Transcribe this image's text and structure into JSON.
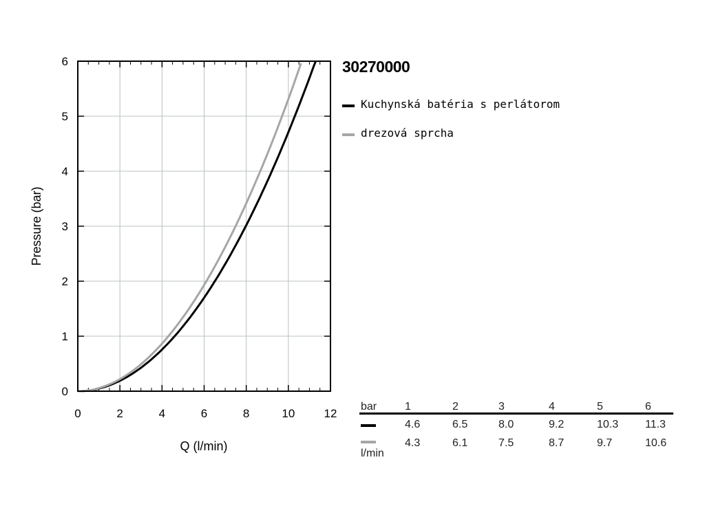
{
  "colors": {
    "series_0": "#000000",
    "series_1": "#a6a6a6",
    "grid": "#b9c0c2"
  },
  "product_code": "30270000",
  "chart_data": {
    "type": "line",
    "xlabel": "Q (l/min)",
    "ylabel": "Pressure (bar)",
    "xlim": [
      0,
      12
    ],
    "ylim": [
      0,
      6
    ],
    "xticks": [
      "0",
      "2",
      "4",
      "6",
      "8",
      "10",
      "12"
    ],
    "yticks": [
      "0",
      "1",
      "2",
      "3",
      "4",
      "5",
      "6"
    ],
    "grid": true,
    "legend_position": "right",
    "series": [
      {
        "name": "Kuchynská batéria s perlátorom",
        "color": "#000000",
        "x": [
          0,
          4.6,
          6.5,
          8.0,
          9.2,
          10.3,
          11.3
        ],
        "y": [
          0,
          1,
          2,
          3,
          4,
          5,
          6
        ]
      },
      {
        "name": "drezová sprcha",
        "color": "#a6a6a6",
        "x": [
          0,
          4.3,
          6.1,
          7.5,
          8.7,
          9.7,
          10.6
        ],
        "y": [
          0,
          1,
          2,
          3,
          4,
          5,
          6
        ]
      }
    ]
  },
  "flow_table": {
    "bar_label": "bar",
    "unit_label": "l/min",
    "pressures": [
      "1",
      "2",
      "3",
      "4",
      "5",
      "6"
    ],
    "rows": [
      {
        "color": "#000000",
        "values": [
          "4.6",
          "6.5",
          "8.0",
          "9.2",
          "10.3",
          "11.3"
        ]
      },
      {
        "color": "#a6a6a6",
        "values": [
          "4.3",
          "6.1",
          "7.5",
          "8.7",
          "9.7",
          "10.6"
        ]
      }
    ]
  }
}
